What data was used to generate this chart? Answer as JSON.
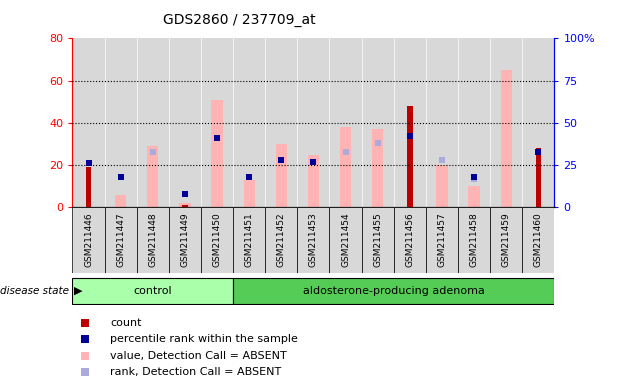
{
  "title": "GDS2860 / 237709_at",
  "samples": [
    "GSM211446",
    "GSM211447",
    "GSM211448",
    "GSM211449",
    "GSM211450",
    "GSM211451",
    "GSM211452",
    "GSM211453",
    "GSM211454",
    "GSM211455",
    "GSM211456",
    "GSM211457",
    "GSM211458",
    "GSM211459",
    "GSM211460"
  ],
  "count": [
    19,
    0,
    0,
    1,
    0,
    0,
    0,
    0,
    0,
    0,
    48,
    0,
    0,
    0,
    28
  ],
  "percentile_rank": [
    26,
    18,
    null,
    8,
    41,
    18,
    28,
    27,
    null,
    null,
    42,
    null,
    18,
    null,
    33
  ],
  "value_absent": [
    null,
    6,
    29,
    2,
    51,
    13,
    30,
    25,
    38,
    37,
    null,
    20,
    10,
    65,
    null
  ],
  "rank_absent": [
    null,
    18,
    33,
    8,
    null,
    null,
    28,
    27,
    33,
    38,
    null,
    28,
    17,
    null,
    null
  ],
  "control_count": 5,
  "adenoma_count": 10,
  "left_ylim": [
    0,
    80
  ],
  "right_ylim": [
    0,
    100
  ],
  "left_yticks": [
    0,
    20,
    40,
    60,
    80
  ],
  "right_yticks": [
    0,
    25,
    50,
    75,
    100
  ],
  "right_yticklabels": [
    "0",
    "25",
    "50",
    "75",
    "100%"
  ],
  "bar_color_dark_red": "#bb0000",
  "bar_color_pink": "#ffb3b3",
  "dot_color_dark_blue": "#000099",
  "dot_color_light_blue": "#aaaadd",
  "control_bg": "#aaffaa",
  "adenoma_bg": "#55cc55",
  "col_bg": "#d8d8d8",
  "plot_bg": "#ffffff",
  "legend_items": [
    {
      "color": "#bb0000",
      "label": "count"
    },
    {
      "color": "#000099",
      "label": "percentile rank within the sample"
    },
    {
      "color": "#ffb3b3",
      "label": "value, Detection Call = ABSENT"
    },
    {
      "color": "#aaaadd",
      "label": "rank, Detection Call = ABSENT"
    }
  ]
}
